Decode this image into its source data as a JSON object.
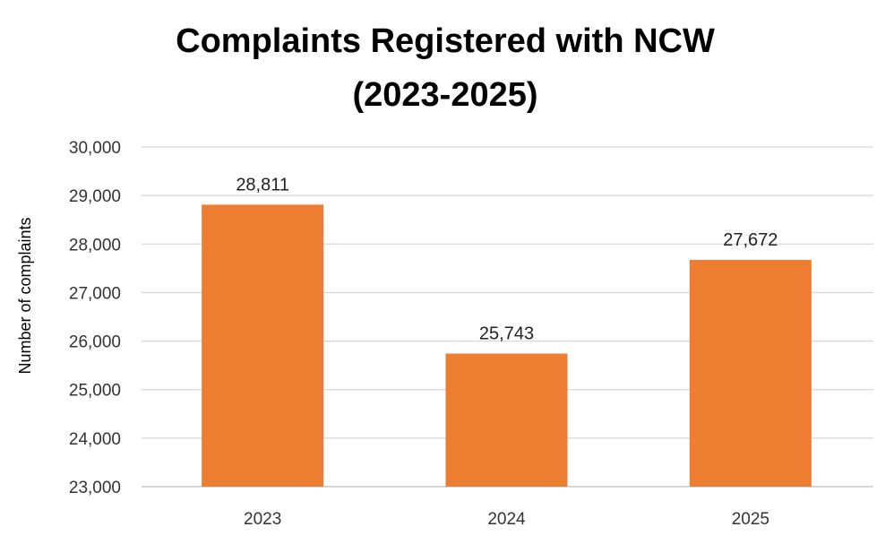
{
  "chart_data": {
    "type": "bar",
    "title": [
      "Complaints Registered with NCW",
      "(2023-2025)"
    ],
    "xlabel": "",
    "ylabel": "Number of complaints",
    "categories": [
      "2023",
      "2024",
      "2025"
    ],
    "values": [
      28811,
      25743,
      27672
    ],
    "value_labels": [
      "28,811",
      "25,743",
      "27,672"
    ],
    "ylim": [
      23000,
      30000
    ],
    "yticks": [
      23000,
      24000,
      25000,
      26000,
      27000,
      28000,
      29000,
      30000
    ],
    "ytick_labels": [
      "23,000",
      "24,000",
      "25,000",
      "26,000",
      "27,000",
      "28,000",
      "29,000",
      "30,000"
    ],
    "grid": true,
    "legend": "none",
    "colors": {
      "bar": "#ED7D31",
      "grid": "#D9D9D9"
    }
  }
}
